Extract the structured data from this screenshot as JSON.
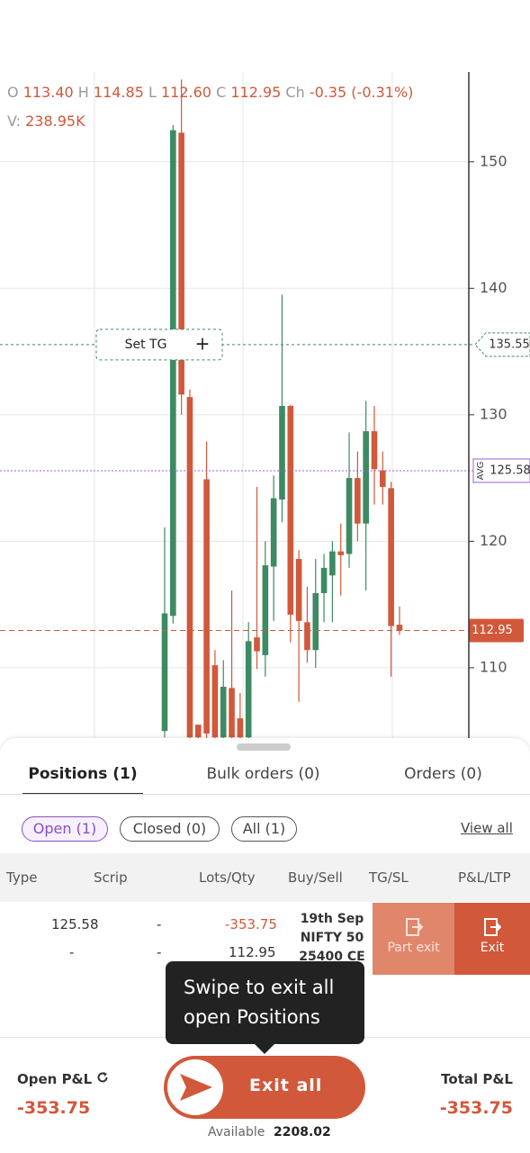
{
  "chart": {
    "type": "candlestick",
    "legend": {
      "open_label": "O",
      "open": "113.40",
      "high_label": "H",
      "high": "114.85",
      "low_label": "L",
      "low": "112.60",
      "close_label": "C",
      "close": "112.95",
      "change_label": "Ch",
      "change": "-0.35 (-0.31%)",
      "volume_label": "V:",
      "volume": "238.95K"
    },
    "ylim": [
      104.3,
      157.1
    ],
    "yticks": [
      110,
      120,
      130,
      140,
      150
    ],
    "grid": true,
    "up_color": "#3d8a63",
    "down_color": "#d1583a",
    "candles": {
      "open": [
        105,
        114.1,
        152.3,
        131.4,
        105.5,
        124.9,
        110.2,
        104.5,
        108.4,
        106,
        104.5,
        112.4,
        111,
        118,
        123.3,
        130.7,
        118.6,
        113.6,
        111.4,
        115.9,
        117.3,
        119.2,
        119,
        125,
        121.4,
        128.7,
        125.6,
        124.2,
        113.4
      ],
      "high": [
        121.1,
        152.9,
        156.5,
        132,
        105.5,
        127.9,
        111.4,
        110.6,
        116.1,
        108,
        113.6,
        124.3,
        120,
        125.2,
        139.5,
        130.8,
        119.3,
        116.4,
        118.6,
        119,
        120,
        121.4,
        128.6,
        127.1,
        131.1,
        130.7,
        127.1,
        124.7,
        114.85
      ],
      "low": [
        104.5,
        113.5,
        130,
        104.3,
        104.3,
        104.3,
        104.3,
        104.3,
        104.3,
        104.3,
        104.3,
        109.9,
        109.3,
        113.7,
        121.5,
        112,
        107.3,
        110.4,
        110,
        113.6,
        113.6,
        115.7,
        117.9,
        120,
        116.1,
        122.9,
        122.9,
        109.3,
        112.6
      ],
      "close": [
        114.3,
        152.5,
        131.6,
        104.5,
        104.5,
        104.8,
        104.5,
        108.5,
        104.5,
        104.5,
        112.1,
        111.3,
        118.1,
        123.4,
        130.7,
        114.2,
        113.7,
        111.4,
        115.9,
        117.9,
        119.2,
        118.9,
        125,
        121.4,
        128.7,
        125.7,
        124.3,
        113.3,
        112.95
      ]
    },
    "target_line": {
      "value": 135.55,
      "button": "Set TG",
      "icon": "+"
    },
    "avg_line": {
      "value": 125.58,
      "tag": "AVG"
    },
    "ltp_line": {
      "value": 112.95
    }
  },
  "tabs": [
    "Positions (1)",
    "Bulk orders (0)",
    "Orders (0)"
  ],
  "filters": [
    "Open (1)",
    "Closed (0)",
    "All (1)"
  ],
  "view_all": "View all",
  "table": {
    "headers": [
      "Type",
      "Scrip",
      "Lots/Qty",
      "Buy/Sell",
      "TG/SL",
      "P&L/LTP"
    ],
    "row": {
      "avg": "125.58",
      "dash1": "-",
      "pnl": "-353.75",
      "dash2": "-",
      "dash3": "-",
      "ltp": "112.95",
      "scrip_lines": [
        "19th Sep",
        "NIFTY 50",
        "25400 CE"
      ],
      "part_exit": "Part exit",
      "exit": "Exit"
    }
  },
  "tooltip": [
    "Swipe to exit all",
    "open Positions"
  ],
  "footer": {
    "open_pnl_label": "Open P&L",
    "open_pnl": "-353.75",
    "exit_all": "Exit all",
    "total_pnl_label": "Total P&L",
    "total_pnl": "-353.75",
    "available_label": "Available",
    "available": "2208.02"
  }
}
